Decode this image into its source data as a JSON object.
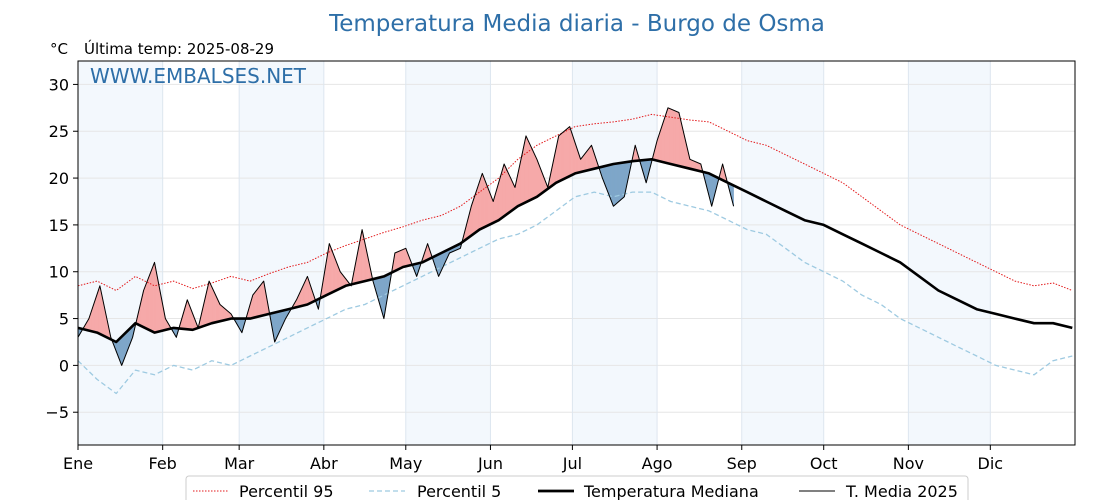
{
  "chart_data": {
    "type": "line",
    "title": "Temperatura Media diaria - Burgo de Osma",
    "unit_label": "°C",
    "subtitle": "Última temp: 2025-08-29",
    "watermark": "WWW.EMBALSES.NET",
    "ylim": [
      -8.5,
      32.5
    ],
    "yticks": [
      -5,
      0,
      5,
      10,
      15,
      20,
      25,
      30
    ],
    "ytick_labels": [
      "−5",
      "0",
      "5",
      "10",
      "15",
      "20",
      "25",
      "30"
    ],
    "xlim_days": [
      0,
      365
    ],
    "months": [
      {
        "label": "Ene",
        "day": 0
      },
      {
        "label": "Feb",
        "day": 31
      },
      {
        "label": "Mar",
        "day": 59
      },
      {
        "label": "Abr",
        "day": 90
      },
      {
        "label": "May",
        "day": 120
      },
      {
        "label": "Jun",
        "day": 151
      },
      {
        "label": "Jul",
        "day": 181
      },
      {
        "label": "Ago",
        "day": 212
      },
      {
        "label": "Sep",
        "day": 243
      },
      {
        "label": "Oct",
        "day": 273
      },
      {
        "label": "Nov",
        "day": 304
      },
      {
        "label": "Dic",
        "day": 334
      }
    ],
    "grid": true,
    "legend_position": "bottom",
    "series": [
      {
        "name": "Percentil 95",
        "color": "#e31a1c",
        "style": "dotted",
        "x": [
          0,
          7,
          14,
          21,
          28,
          35,
          42,
          49,
          56,
          63,
          70,
          77,
          84,
          91,
          98,
          105,
          112,
          119,
          126,
          133,
          140,
          147,
          154,
          161,
          168,
          175,
          182,
          189,
          196,
          203,
          210,
          217,
          224,
          231,
          238,
          245,
          252,
          259,
          266,
          273,
          280,
          287,
          294,
          301,
          308,
          315,
          322,
          329,
          336,
          343,
          350,
          357,
          364
        ],
        "y": [
          8.5,
          9.0,
          8.0,
          9.5,
          8.5,
          9.0,
          8.2,
          8.8,
          9.5,
          9.0,
          9.8,
          10.5,
          11.0,
          12.0,
          12.8,
          13.5,
          14.2,
          14.8,
          15.5,
          16.0,
          17.0,
          18.5,
          20.0,
          22.0,
          23.5,
          24.5,
          25.5,
          25.8,
          26.0,
          26.3,
          26.8,
          26.5,
          26.2,
          26.0,
          25.0,
          24.0,
          23.5,
          22.5,
          21.5,
          20.5,
          19.5,
          18.0,
          16.5,
          15.0,
          14.0,
          13.0,
          12.0,
          11.0,
          10.0,
          9.0,
          8.5,
          8.8,
          8.0
        ]
      },
      {
        "name": "Percentil 5",
        "color": "#9ecae1",
        "style": "dashed",
        "x": [
          0,
          7,
          14,
          21,
          28,
          35,
          42,
          49,
          56,
          63,
          70,
          77,
          84,
          91,
          98,
          105,
          112,
          119,
          126,
          133,
          140,
          147,
          154,
          161,
          168,
          175,
          182,
          189,
          196,
          203,
          210,
          217,
          224,
          231,
          238,
          245,
          252,
          259,
          266,
          273,
          280,
          287,
          294,
          301,
          308,
          315,
          322,
          329,
          336,
          343,
          350,
          357,
          364
        ],
        "y": [
          0.5,
          -1.5,
          -3.0,
          -0.5,
          -1.0,
          0.0,
          -0.5,
          0.5,
          0.0,
          1.0,
          2.0,
          3.0,
          4.0,
          5.0,
          6.0,
          6.5,
          7.5,
          8.5,
          9.5,
          10.5,
          11.5,
          12.5,
          13.5,
          14.0,
          15.0,
          16.5,
          18.0,
          18.5,
          18.0,
          18.5,
          18.5,
          17.5,
          17.0,
          16.5,
          15.5,
          14.5,
          14.0,
          12.5,
          11.0,
          10.0,
          9.0,
          7.5,
          6.5,
          5.0,
          4.0,
          3.0,
          2.0,
          1.0,
          0.0,
          -0.5,
          -1.0,
          0.5,
          1.0
        ]
      },
      {
        "name": "Temperatura Mediana",
        "color": "#000000",
        "style": "solid-thick",
        "x": [
          0,
          7,
          14,
          21,
          28,
          35,
          42,
          49,
          56,
          63,
          70,
          77,
          84,
          91,
          98,
          105,
          112,
          119,
          126,
          133,
          140,
          147,
          154,
          161,
          168,
          175,
          182,
          189,
          196,
          203,
          210,
          217,
          224,
          231,
          238,
          245,
          252,
          259,
          266,
          273,
          280,
          287,
          294,
          301,
          308,
          315,
          322,
          329,
          336,
          343,
          350,
          357,
          364
        ],
        "y": [
          4.0,
          3.5,
          2.5,
          4.5,
          3.5,
          4.0,
          3.8,
          4.5,
          5.0,
          5.0,
          5.5,
          6.0,
          6.5,
          7.5,
          8.5,
          9.0,
          9.5,
          10.5,
          11.0,
          12.0,
          13.0,
          14.5,
          15.5,
          17.0,
          18.0,
          19.5,
          20.5,
          21.0,
          21.5,
          21.8,
          22.0,
          21.5,
          21.0,
          20.5,
          19.5,
          18.5,
          17.5,
          16.5,
          15.5,
          15.0,
          14.0,
          13.0,
          12.0,
          11.0,
          9.5,
          8.0,
          7.0,
          6.0,
          5.5,
          5.0,
          4.5,
          4.5,
          4.0
        ]
      },
      {
        "name": "T. Media 2025",
        "color": "#000000",
        "style": "solid-thin",
        "x": [
          0,
          4,
          8,
          12,
          16,
          20,
          24,
          28,
          32,
          36,
          40,
          44,
          48,
          52,
          56,
          60,
          64,
          68,
          72,
          76,
          80,
          84,
          88,
          92,
          96,
          100,
          104,
          108,
          112,
          116,
          120,
          124,
          128,
          132,
          136,
          140,
          144,
          148,
          152,
          156,
          160,
          164,
          168,
          172,
          176,
          180,
          184,
          188,
          192,
          196,
          200,
          204,
          208,
          212,
          216,
          220,
          224,
          228,
          232,
          236,
          240
        ],
        "y": [
          3.0,
          5.0,
          8.5,
          3.0,
          0.0,
          3.0,
          8.0,
          11.0,
          5.0,
          3.0,
          7.0,
          4.0,
          9.0,
          6.5,
          5.5,
          3.5,
          7.5,
          9.0,
          2.5,
          5.0,
          7.0,
          9.5,
          6.0,
          13.0,
          10.0,
          8.5,
          14.5,
          9.0,
          5.0,
          12.0,
          12.5,
          9.5,
          13.0,
          9.5,
          12.0,
          12.5,
          17.0,
          20.5,
          17.5,
          21.5,
          19.0,
          24.5,
          22.0,
          19.0,
          24.5,
          25.5,
          22.0,
          23.5,
          20.0,
          17.0,
          18.0,
          23.5,
          19.5,
          24.0,
          27.5,
          27.0,
          22.0,
          21.5,
          17.0,
          21.5,
          17.0
        ]
      }
    ]
  }
}
